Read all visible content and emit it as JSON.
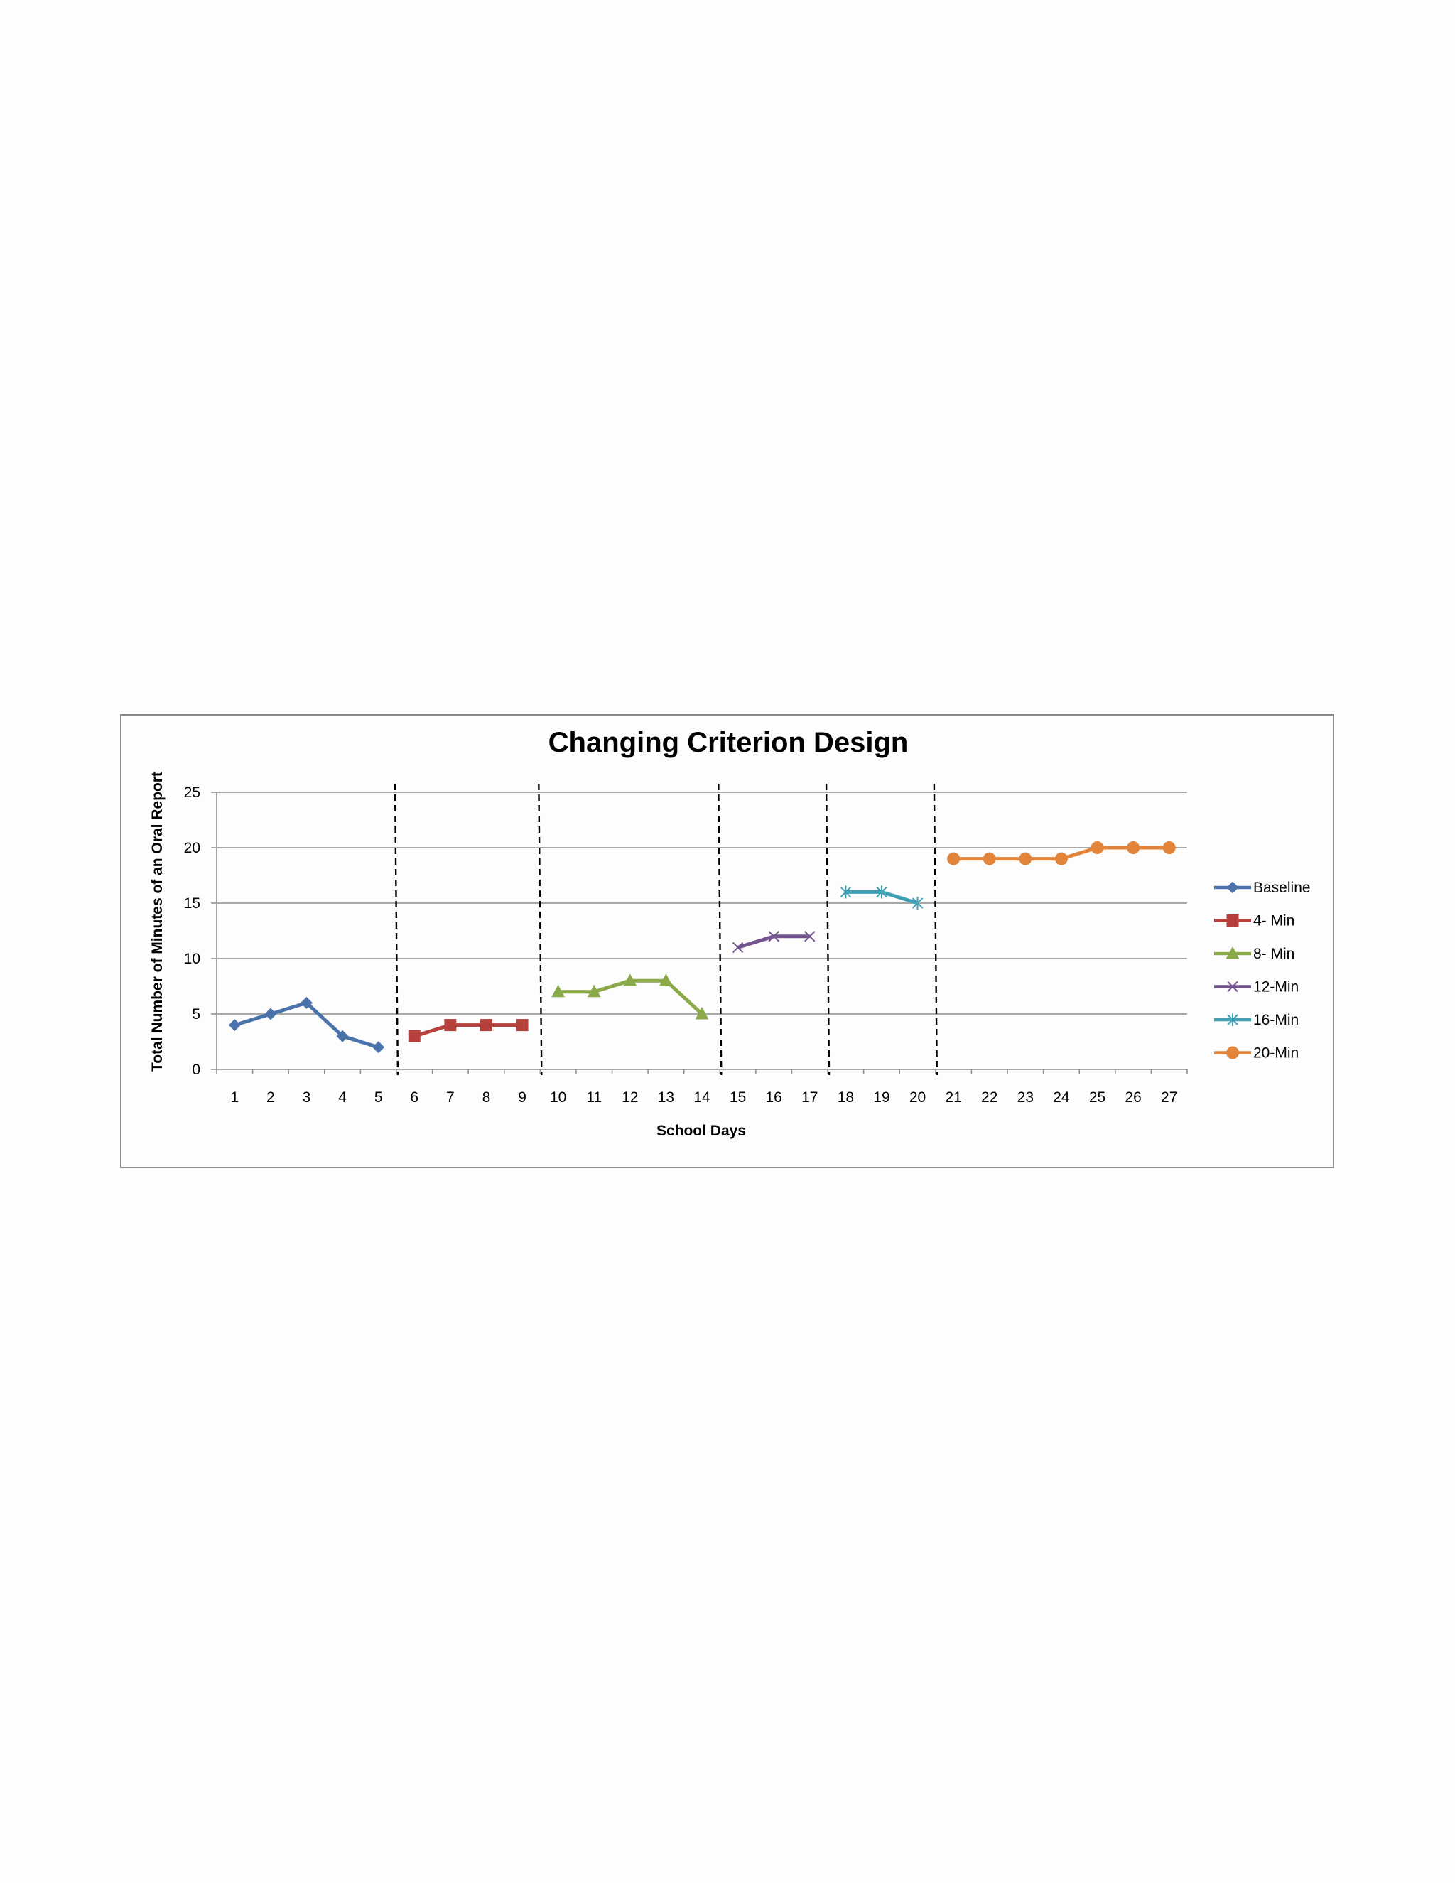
{
  "chart_data": {
    "type": "line",
    "title": "Changing Criterion Design",
    "xlabel": "School Days",
    "ylabel": "Total Number of Minutes of an Oral Report",
    "x": [
      1,
      2,
      3,
      4,
      5,
      6,
      7,
      8,
      9,
      10,
      11,
      12,
      13,
      14,
      15,
      16,
      17,
      18,
      19,
      20,
      21,
      22,
      23,
      24,
      25,
      26,
      27
    ],
    "ylim": [
      0,
      25
    ],
    "yticks": [
      0,
      5,
      10,
      15,
      20,
      25
    ],
    "grid": true,
    "legend_position": "right",
    "phase_change_lines_after_x": [
      5,
      9,
      14,
      17,
      20
    ],
    "series": [
      {
        "name": "Baseline",
        "color": "#4a73ab",
        "marker": "diamond",
        "x": [
          1,
          2,
          3,
          4,
          5
        ],
        "values": [
          4,
          5,
          6,
          3,
          2
        ]
      },
      {
        "name": "4- Min",
        "color": "#b5403c",
        "marker": "square",
        "x": [
          6,
          7,
          8,
          9
        ],
        "values": [
          3,
          4,
          4,
          4
        ]
      },
      {
        "name": "8- Min",
        "color": "#8aaa4a",
        "marker": "triangle",
        "x": [
          10,
          11,
          12,
          13,
          14
        ],
        "values": [
          7,
          7,
          8,
          8,
          5
        ]
      },
      {
        "name": "12-Min",
        "color": "#74548f",
        "marker": "x",
        "x": [
          15,
          16,
          17
        ],
        "values": [
          11,
          12,
          12
        ]
      },
      {
        "name": "16-Min",
        "color": "#3f9fb5",
        "marker": "star",
        "x": [
          18,
          19,
          20
        ],
        "values": [
          16,
          16,
          15
        ]
      },
      {
        "name": "20-Min",
        "color": "#e2853a",
        "marker": "circle",
        "x": [
          21,
          22,
          23,
          24,
          25,
          26,
          27
        ],
        "values": [
          19,
          19,
          19,
          19,
          20,
          20,
          20
        ]
      }
    ]
  }
}
